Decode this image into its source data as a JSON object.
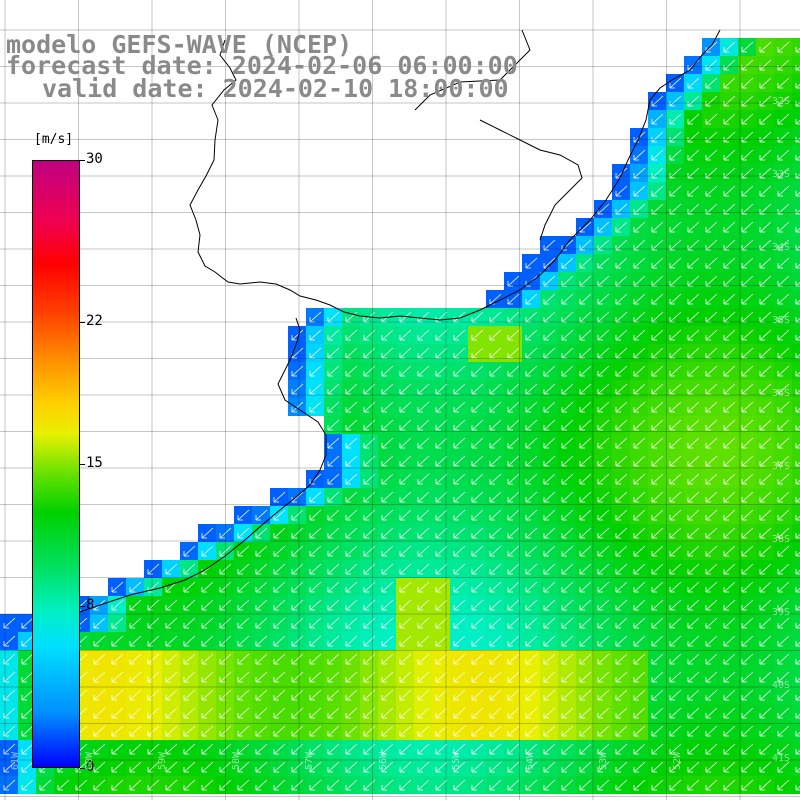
{
  "title": {
    "line1": "modelo GEFS-WAVE (NCEP)",
    "line2": "forecast date: 2024-02-06 06:00:00",
    "line3": "valid date: 2024-02-10 18:00:00"
  },
  "colorbar": {
    "unit": "[m/s]",
    "min": 0,
    "max": 30,
    "ticks": [
      {
        "label": "30",
        "value": 30
      },
      {
        "label": "22",
        "value": 22
      },
      {
        "label": "15",
        "value": 15
      },
      {
        "label": "8",
        "value": 8
      },
      {
        "label": "0",
        "value": 0
      }
    ]
  },
  "lat_labels": [
    "32S",
    "33S",
    "34S",
    "35S",
    "36S",
    "37S",
    "38S",
    "39S",
    "40S",
    "41S"
  ],
  "lon_labels": [
    "61W",
    "60W",
    "59W",
    "58W",
    "57W",
    "56W",
    "55W",
    "54W",
    "53W",
    "52W"
  ],
  "colors": {
    "land": "#ffffff",
    "grid": "#000000",
    "arrows": "#ffffff",
    "title": "#8a8a8a"
  }
}
